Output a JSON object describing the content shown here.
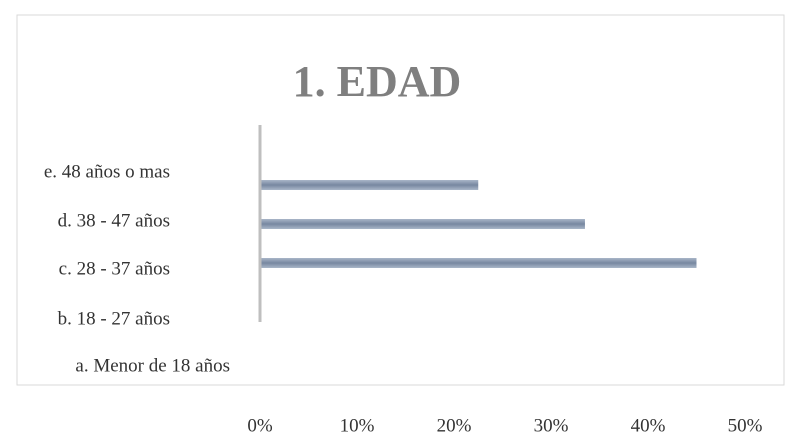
{
  "chart_data": {
    "type": "barh",
    "title": "1. EDAD",
    "categories": [
      "a. Menor de 18 años",
      "b. 18 - 27 años",
      "c. 28 - 37 años",
      "d. 38 - 47 años",
      "e. 48 años o mas"
    ],
    "values": [
      0,
      0,
      45,
      33.5,
      22.5
    ],
    "color": "#8393ab",
    "xlim": [
      0,
      50
    ],
    "xticks": [
      {
        "value": 0,
        "label": "0%"
      },
      {
        "value": 10,
        "label": "10%"
      },
      {
        "value": 20,
        "label": "20%"
      },
      {
        "value": 30,
        "label": "30%"
      },
      {
        "value": 40,
        "label": "40%"
      },
      {
        "value": 50,
        "label": "50%"
      }
    ],
    "grid": false
  }
}
